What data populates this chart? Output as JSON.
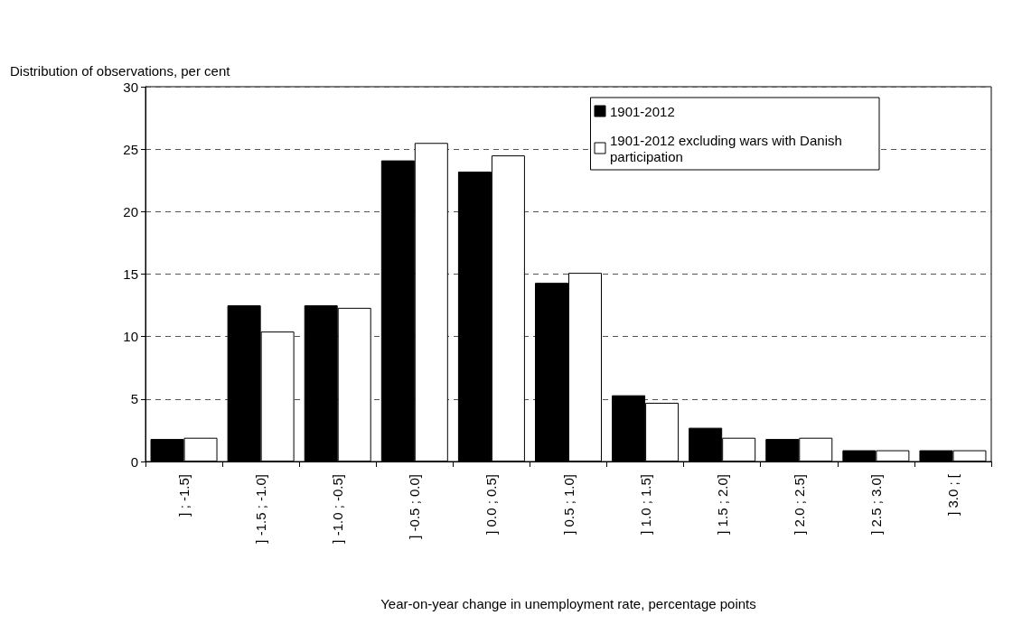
{
  "chart_data": {
    "type": "bar",
    "ylabel": "Distribution of observations, per cent",
    "xlabel": "Year-on-year change in unemployment rate, percentage points",
    "categories": [
      "] ; -1.5]",
      "] -1.5 ; -1.0]",
      "] -1.0 ; -0.5]",
      "] -0.5 ; 0.0]",
      "] 0.0 ; 0.5]",
      "] 0.5 ; 1.0]",
      "] 1.0 ; 1.5]",
      "] 1.5 ; 2.0]",
      "] 2.0 ; 2.5]",
      "] 2.5 ; 3.0]",
      "] 3.0 ; ["
    ],
    "series": [
      {
        "name": "1901-2012",
        "color": "#000000",
        "values": [
          1.8,
          12.5,
          12.5,
          24.1,
          23.2,
          14.3,
          5.3,
          2.7,
          1.8,
          0.9,
          0.9
        ]
      },
      {
        "name": "1901-2012 excluding wars with Danish participation",
        "color": "#ffffff",
        "values": [
          1.9,
          10.4,
          12.3,
          25.5,
          24.5,
          15.1,
          4.7,
          1.9,
          1.9,
          0.9,
          0.9
        ]
      }
    ],
    "ylim": [
      0,
      30
    ],
    "yticks": [
      0,
      5,
      10,
      15,
      20,
      25,
      30
    ],
    "grid": "y",
    "legend": "top right"
  }
}
